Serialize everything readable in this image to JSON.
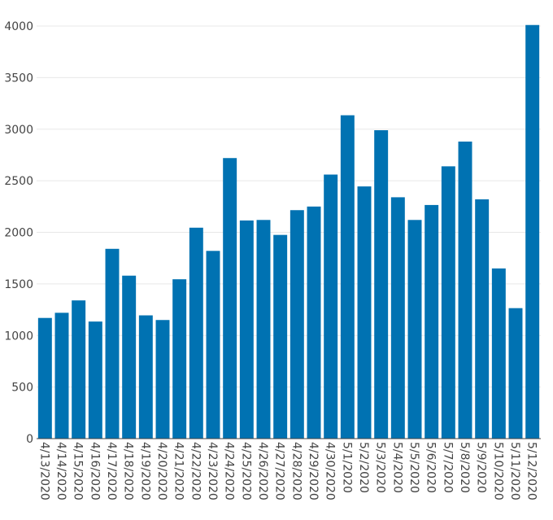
{
  "chart_data": {
    "type": "bar",
    "title": "",
    "xlabel": "",
    "ylabel": "",
    "ylim": [
      0,
      4000
    ],
    "yticks": [
      0,
      500,
      1000,
      1500,
      2000,
      2500,
      3000,
      3500,
      4000
    ],
    "grid": true,
    "bar_color": "#0072b2",
    "categories": [
      "4/13/2020",
      "4/14/2020",
      "4/15/2020",
      "4/16/2020",
      "4/17/2020",
      "4/18/2020",
      "4/19/2020",
      "4/20/2020",
      "4/21/2020",
      "4/22/2020",
      "4/23/2020",
      "4/24/2020",
      "4/25/2020",
      "4/26/2020",
      "4/27/2020",
      "4/28/2020",
      "4/29/2020",
      "4/30/2020",
      "5/1/2020",
      "5/2/2020",
      "5/3/2020",
      "5/4/2020",
      "5/5/2020",
      "5/6/2020",
      "5/7/2020",
      "5/8/2020",
      "5/9/2020",
      "5/10/2020",
      "5/11/2020",
      "5/12/2020"
    ],
    "values": [
      1170,
      1220,
      1340,
      1135,
      1840,
      1580,
      1195,
      1150,
      1545,
      2045,
      1820,
      2720,
      2115,
      2120,
      1975,
      2215,
      2250,
      2560,
      3135,
      2445,
      2990,
      2340,
      2120,
      2265,
      2640,
      2880,
      2320,
      1650,
      1265,
      4010
    ]
  }
}
